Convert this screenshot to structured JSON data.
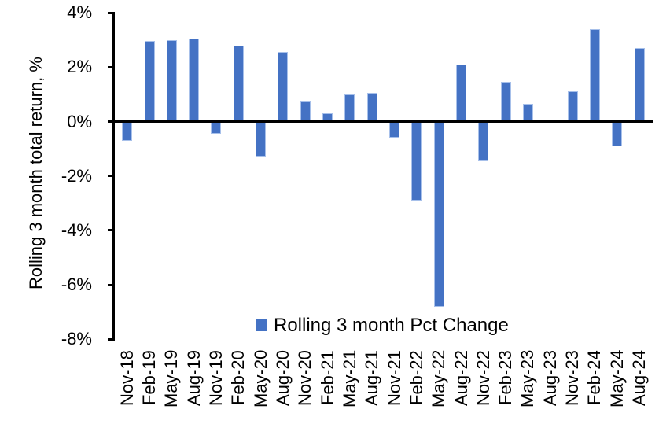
{
  "chart_data": {
    "type": "bar",
    "title": "",
    "xlabel": "",
    "ylabel": "Rolling 3 month total return, %",
    "ylim": [
      -8,
      4
    ],
    "grid": false,
    "legend_position": "bottom-center",
    "bar_color": "#4472C4",
    "bar_border_color": "#a7c0ea",
    "axis_color": "#000000",
    "yticks": [
      {
        "label": "4%",
        "value": 4
      },
      {
        "label": "2%",
        "value": 2
      },
      {
        "label": "0%",
        "value": 0
      },
      {
        "label": "-2%",
        "value": -2
      },
      {
        "label": "-4%",
        "value": -4
      },
      {
        "label": "-6%",
        "value": -6
      },
      {
        "label": "-8%",
        "value": -8
      }
    ],
    "categories": [
      "Nov-18",
      "Feb-19",
      "May-19",
      "Aug-19",
      "Nov-19",
      "Feb-20",
      "May-20",
      "Aug-20",
      "Nov-20",
      "Feb-21",
      "May-21",
      "Aug-21",
      "Nov-21",
      "Feb-22",
      "May-22",
      "Aug-22",
      "Nov-22",
      "Feb-23",
      "May-23",
      "Aug-23",
      "Nov-23",
      "Feb-24",
      "May-24",
      "Aug-24"
    ],
    "series": [
      {
        "name": "Rolling 3 month Pct Change",
        "values": [
          -0.7,
          2.95,
          3.0,
          3.05,
          -0.45,
          2.8,
          -1.3,
          2.55,
          0.75,
          0.3,
          1.0,
          1.05,
          -0.6,
          -2.9,
          -6.8,
          2.1,
          -1.45,
          1.45,
          0.65,
          0.0,
          1.1,
          3.4,
          -0.9,
          2.7
        ]
      }
    ]
  },
  "legend": {
    "label": "Rolling 3 month Pct Change",
    "swatch_color": "#4472C4"
  }
}
